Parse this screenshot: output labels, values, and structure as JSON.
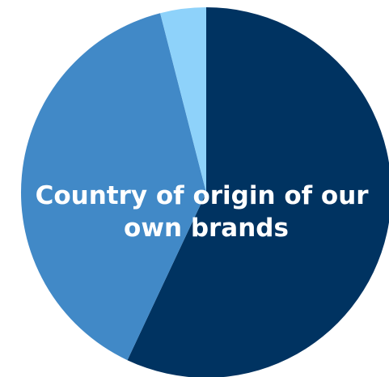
{
  "chart_data": {
    "type": "pie",
    "title": "Country of origin of our own brands",
    "title_lines": [
      "Country of origin of our",
      "own brands"
    ],
    "labels": [
      "",
      "",
      ""
    ],
    "values": [
      57,
      39,
      4
    ],
    "colors": [
      "#003361",
      "#4189c7",
      "#8ed2fa"
    ],
    "start": "12 o'clock",
    "direction": "clockwise",
    "legend": "none"
  }
}
